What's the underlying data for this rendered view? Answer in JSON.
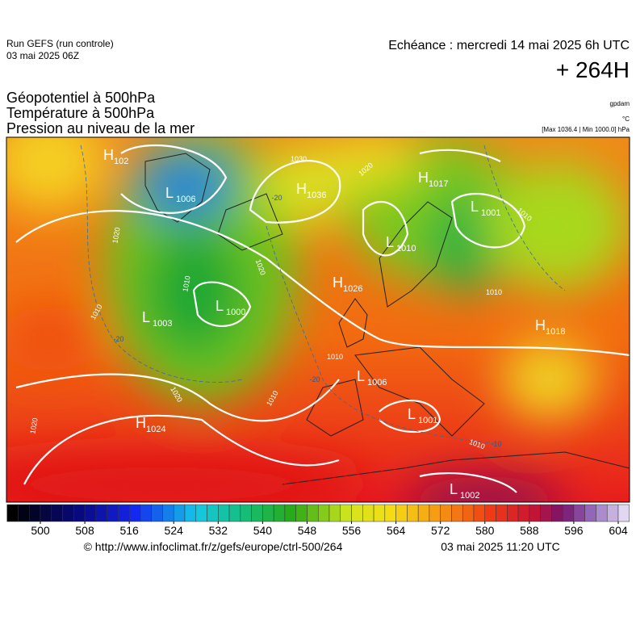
{
  "header": {
    "run": "Run GEFS (run controle)",
    "run_date": "03 mai 2025 06Z",
    "valid": "Echéance : mercredi 14 mai 2025 6h UTC",
    "lead": "+ 264H",
    "fields": [
      "Géopotentiel à 500hPa",
      "Température à 500hPa",
      "Pression au niveau de la mer"
    ],
    "units": [
      "gpdam",
      "°C",
      "[Max 1036.4 | Min 1000.0] hPa"
    ]
  },
  "map": {
    "centers": [
      {
        "letter": "H",
        "value": 102
      },
      {
        "letter": "L",
        "value": 1006
      },
      {
        "letter": "H",
        "value": 1036
      },
      {
        "letter": "H",
        "value": 1017
      },
      {
        "letter": "L",
        "value": 1001
      },
      {
        "letter": "L",
        "value": 1010
      },
      {
        "letter": "H",
        "value": 1026
      },
      {
        "letter": "L",
        "value": 1000
      },
      {
        "letter": "L",
        "value": 1003
      },
      {
        "letter": "H",
        "value": 1018
      },
      {
        "letter": "L",
        "value": 1006
      },
      {
        "letter": "L",
        "value": 1001
      },
      {
        "letter": "H",
        "value": 1024
      },
      {
        "letter": "L",
        "value": 1002
      }
    ],
    "isobar_labels": [
      1030,
      1020,
      1020,
      1010,
      1020,
      1010,
      1010,
      1010,
      1010,
      1010,
      1020,
      1020,
      1010
    ],
    "temperature_labels": [
      -20,
      -20,
      -20,
      -10
    ]
  },
  "colorbar": {
    "ticks": [
      500,
      508,
      516,
      524,
      532,
      540,
      548,
      556,
      564,
      572,
      580,
      588,
      596,
      604
    ]
  },
  "footer": {
    "source": "© http://www.infoclimat.fr/z/gefs/europe/ctrl-500/264",
    "generated": "03 mai 2025 11:20 UTC"
  }
}
